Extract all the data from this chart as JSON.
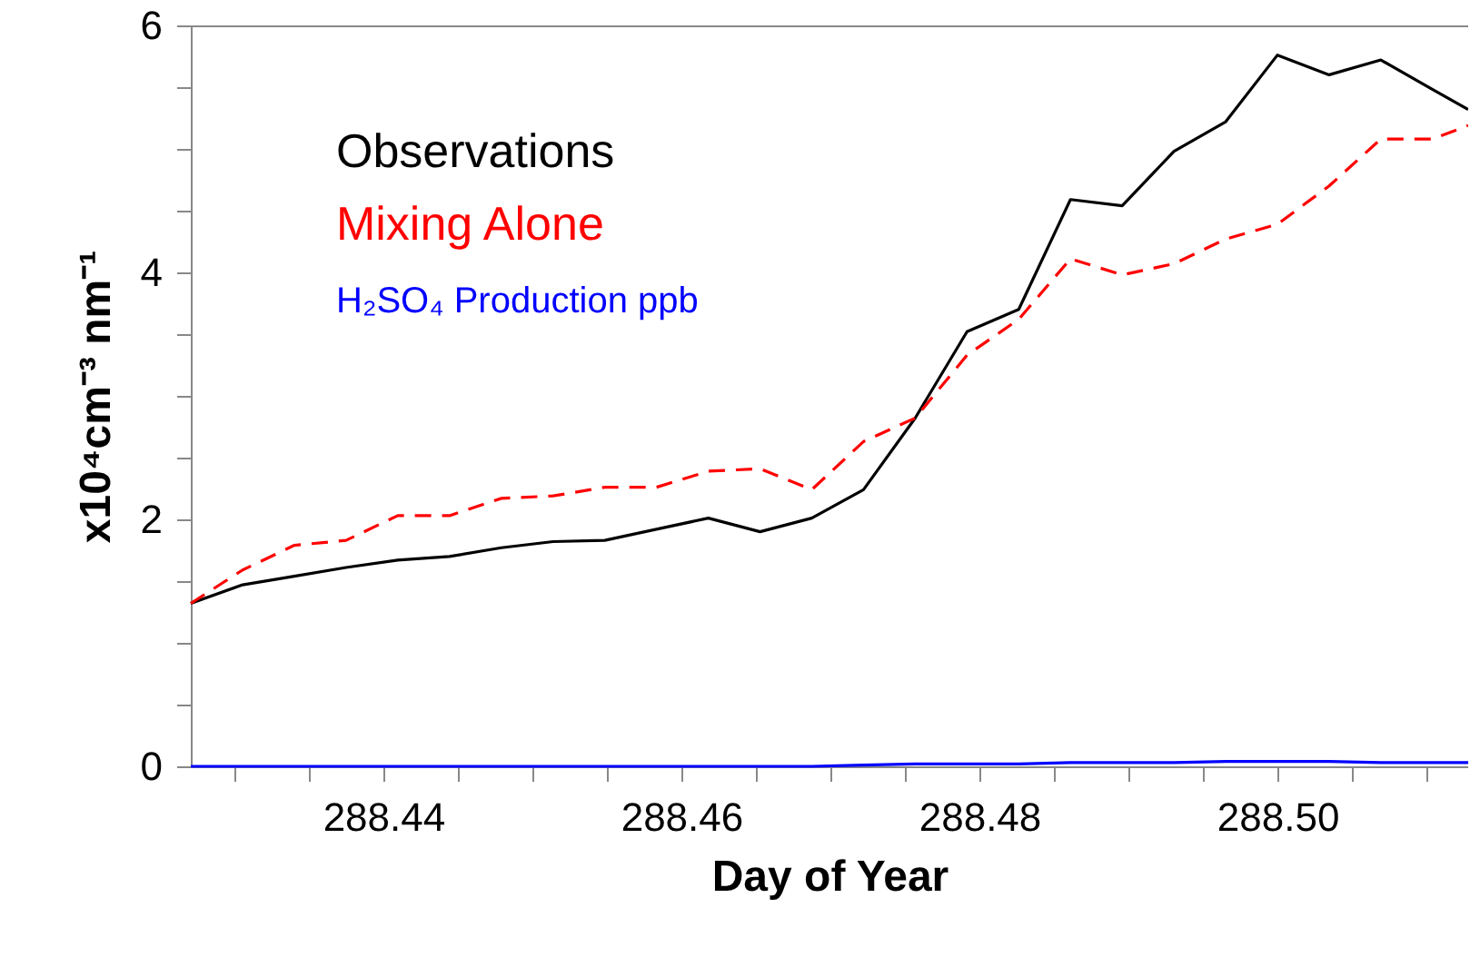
{
  "chart_data": {
    "type": "line",
    "xlabel": "Day of Year",
    "ylabel": "x10⁴cm⁻³ nm⁻¹",
    "xlim": [
      288.42708,
      288.5128
    ],
    "ylim": [
      0,
      6
    ],
    "xticks": [
      {
        "value": 288.43,
        "label": null
      },
      {
        "value": 288.435,
        "label": null
      },
      {
        "value": 288.44,
        "label": "288.44"
      },
      {
        "value": 288.445,
        "label": null
      },
      {
        "value": 288.45,
        "label": null
      },
      {
        "value": 288.455,
        "label": null
      },
      {
        "value": 288.46,
        "label": "288.46"
      },
      {
        "value": 288.465,
        "label": null
      },
      {
        "value": 288.47,
        "label": null
      },
      {
        "value": 288.475,
        "label": null
      },
      {
        "value": 288.48,
        "label": "288.48"
      },
      {
        "value": 288.485,
        "label": null
      },
      {
        "value": 288.49,
        "label": null
      },
      {
        "value": 288.495,
        "label": null
      },
      {
        "value": 288.5,
        "label": "288.50"
      },
      {
        "value": 288.505,
        "label": null
      },
      {
        "value": 288.51,
        "label": null
      }
    ],
    "yticks": [
      0,
      {
        "value": 0.5,
        "label": null
      },
      {
        "value": 1,
        "label": null
      },
      {
        "value": 1.5,
        "label": null
      },
      2,
      {
        "value": 2.5,
        "label": null
      },
      {
        "value": 3,
        "label": null
      },
      {
        "value": 3.5,
        "label": null
      },
      4,
      {
        "value": 4.5,
        "label": null
      },
      {
        "value": 5,
        "label": null
      },
      {
        "value": 5.5,
        "label": null
      },
      6
    ],
    "x": [
      288.42708,
      288.43056,
      288.43403,
      288.4375,
      288.44097,
      288.44444,
      288.44792,
      288.45139,
      288.45486,
      288.45833,
      288.46181,
      288.46528,
      288.46875,
      288.47222,
      288.47569,
      288.47917,
      288.48264,
      288.48611,
      288.48958,
      288.49306,
      288.49653,
      288.5,
      288.50347,
      288.50694,
      288.51042,
      288.5128
    ],
    "grid": false,
    "legend": "top left",
    "marker": "none",
    "series": [
      {
        "name": "Observations",
        "color": "#000000",
        "line_style": "solid",
        "values": [
          1.32,
          1.47,
          1.54,
          1.61,
          1.67,
          1.7,
          1.77,
          1.82,
          1.83,
          1.92,
          2.01,
          1.9,
          2.01,
          2.24,
          2.82,
          3.52,
          3.7,
          4.59,
          4.54,
          4.98,
          5.22,
          5.76,
          5.6,
          5.72,
          5.48,
          5.32
        ]
      },
      {
        "name": "Mixing Alone",
        "color": "#ff0000",
        "line_style": "dashed",
        "values": [
          1.32,
          1.59,
          1.79,
          1.83,
          2.03,
          2.03,
          2.17,
          2.19,
          2.26,
          2.26,
          2.39,
          2.41,
          2.24,
          2.63,
          2.82,
          3.33,
          3.62,
          4.11,
          3.98,
          4.07,
          4.27,
          4.39,
          4.7,
          5.08,
          5.08,
          5.19
        ]
      },
      {
        "name": "H₂SO₄ Production ppb",
        "color": "#0000ff",
        "line_style": "solid",
        "values": [
          0,
          0,
          0,
          0,
          0,
          0,
          0,
          0,
          0,
          0,
          0,
          0,
          0,
          0.01,
          0.02,
          0.02,
          0.02,
          0.03,
          0.03,
          0.03,
          0.04,
          0.04,
          0.04,
          0.03,
          0.03,
          0.03
        ]
      }
    ]
  }
}
